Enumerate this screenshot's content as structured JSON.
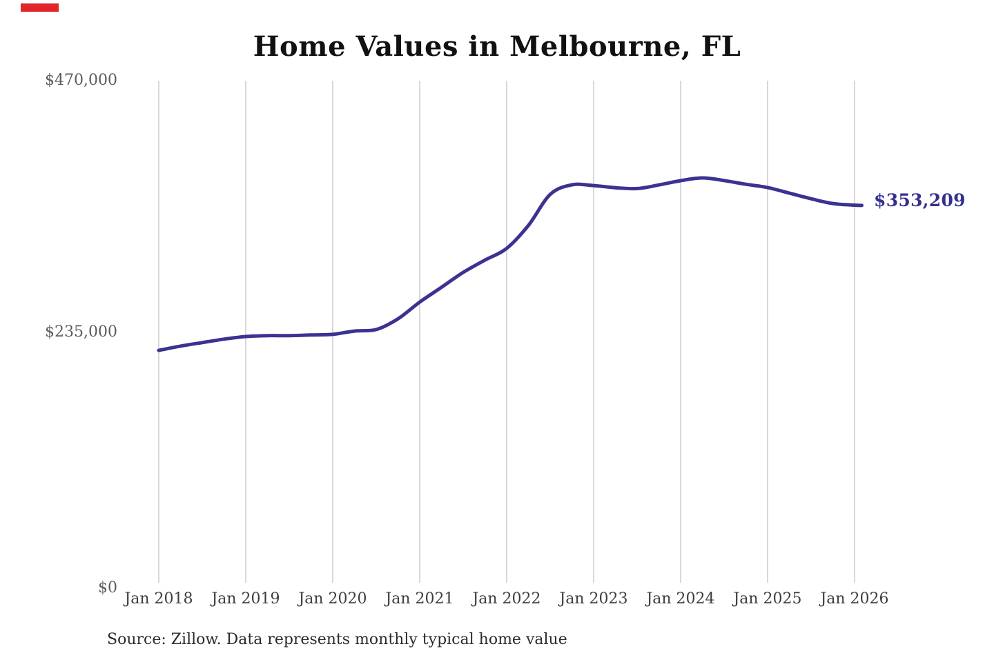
{
  "title": "Home Values in Melbourne, FL",
  "source_note": "Source: Zillow. Data represents monthly typical home value",
  "end_label": "$353,209",
  "marker_color": "#e2242b",
  "colors": {
    "line": "#3b3292",
    "end_label": "#34308e",
    "gridline": "#cccccc",
    "title": "#111111",
    "y_axis_text": "#5b5b5b",
    "x_axis_text": "#3d3d3d",
    "source_text": "#2b2b2b"
  },
  "y_axis": {
    "labels": [
      "$470,000",
      "$235,000",
      "$0"
    ]
  },
  "x_axis": {
    "labels": [
      "Jan 2018",
      "Jan 2019",
      "Jan 2020",
      "Jan 2021",
      "Jan 2022",
      "Jan 2023",
      "Jan 2024",
      "Jan 2025",
      "Jan 2026"
    ]
  },
  "chart_data": {
    "type": "line",
    "title": "Home Values in Melbourne, FL",
    "series_name": "Monthly typical home value",
    "ylabel": "",
    "xlabel": "",
    "ylim": [
      0,
      470000
    ],
    "y_ticks": [
      0,
      235000,
      470000
    ],
    "y_tick_labels": [
      "$0",
      "$235,000",
      "$470,000"
    ],
    "x_ticks": [
      "Jan 2018",
      "Jan 2019",
      "Jan 2020",
      "Jan 2021",
      "Jan 2022",
      "Jan 2023",
      "Jan 2024",
      "Jan 2025",
      "Jan 2026"
    ],
    "grid": "vertical-only",
    "legend": "none",
    "line_color": "#3b3292",
    "end_value": 353209,
    "points": [
      {
        "month": "2018-01",
        "value": 217500
      },
      {
        "month": "2018-04",
        "value": 221500
      },
      {
        "month": "2018-07",
        "value": 224800
      },
      {
        "month": "2018-10",
        "value": 228000
      },
      {
        "month": "2019-01",
        "value": 230500
      },
      {
        "month": "2019-04",
        "value": 231300
      },
      {
        "month": "2019-07",
        "value": 231300
      },
      {
        "month": "2019-10",
        "value": 231900
      },
      {
        "month": "2020-01",
        "value": 232500
      },
      {
        "month": "2020-04",
        "value": 235600
      },
      {
        "month": "2020-07",
        "value": 237000
      },
      {
        "month": "2020-10",
        "value": 247000
      },
      {
        "month": "2021-01",
        "value": 262700
      },
      {
        "month": "2021-04",
        "value": 276500
      },
      {
        "month": "2021-07",
        "value": 290500
      },
      {
        "month": "2021-10",
        "value": 302000
      },
      {
        "month": "2022-01",
        "value": 313000
      },
      {
        "month": "2022-04",
        "value": 334500
      },
      {
        "month": "2022-07",
        "value": 363500
      },
      {
        "month": "2022-10",
        "value": 372500
      },
      {
        "month": "2023-01",
        "value": 371800
      },
      {
        "month": "2023-04",
        "value": 369800
      },
      {
        "month": "2023-07",
        "value": 369000
      },
      {
        "month": "2023-10",
        "value": 372400
      },
      {
        "month": "2024-01",
        "value": 376400
      },
      {
        "month": "2024-04",
        "value": 379000
      },
      {
        "month": "2024-07",
        "value": 376500
      },
      {
        "month": "2024-10",
        "value": 373000
      },
      {
        "month": "2025-01",
        "value": 370000
      },
      {
        "month": "2025-04",
        "value": 364700
      },
      {
        "month": "2025-07",
        "value": 359500
      },
      {
        "month": "2025-10",
        "value": 355000
      },
      {
        "month": "2026-01",
        "value": 353500
      },
      {
        "month": "2026-02",
        "value": 353209
      }
    ]
  }
}
